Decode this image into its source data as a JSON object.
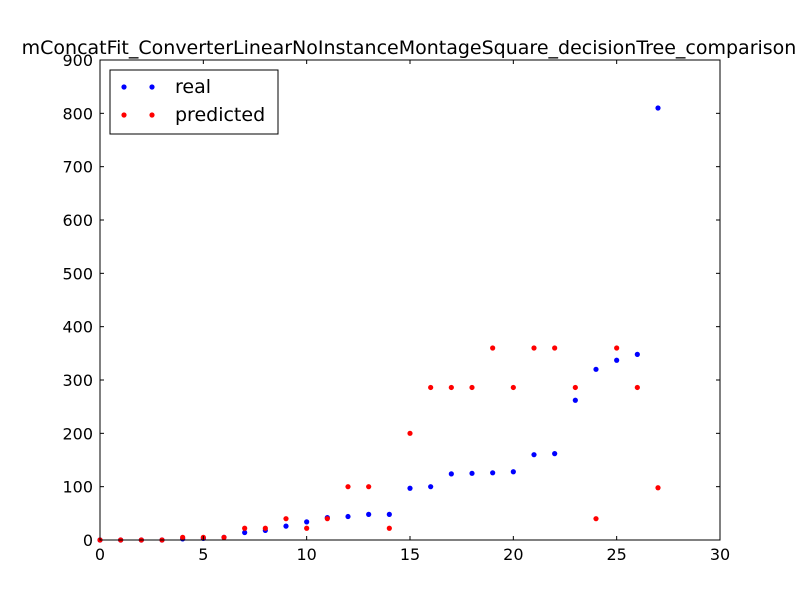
{
  "chart_data": {
    "type": "scatter",
    "title": "mConcatFit_ConverterLinearNoInstanceMontageSquare_decisionTree_comparison",
    "xlabel": "",
    "ylabel": "",
    "xlim": [
      0,
      30
    ],
    "ylim": [
      0,
      900
    ],
    "xticks": [
      "0",
      "5",
      "10",
      "15",
      "20",
      "25",
      "30"
    ],
    "yticks": [
      "0",
      "100",
      "200",
      "300",
      "400",
      "500",
      "600",
      "700",
      "800",
      "900"
    ],
    "grid": false,
    "legend_position": "top-left",
    "x": [
      0,
      1,
      2,
      3,
      4,
      5,
      6,
      7,
      8,
      9,
      10,
      11,
      12,
      13,
      14,
      15,
      16,
      17,
      18,
      19,
      20,
      21,
      22,
      23,
      24,
      25,
      26,
      27
    ],
    "series": [
      {
        "name": "real",
        "color": "#0000ff",
        "values": [
          0,
          0,
          0,
          0,
          2,
          3,
          5,
          14,
          18,
          26,
          34,
          42,
          44,
          48,
          48,
          97,
          100,
          124,
          125,
          126,
          128,
          160,
          162,
          262,
          320,
          337,
          348,
          810
        ]
      },
      {
        "name": "predicted",
        "color": "#ff0000",
        "values": [
          0,
          0,
          0,
          0,
          5,
          5,
          5,
          22,
          22,
          40,
          22,
          40,
          100,
          100,
          22,
          200,
          286,
          286,
          286,
          360,
          286,
          360,
          360,
          286,
          40,
          360,
          286,
          98
        ]
      }
    ]
  }
}
